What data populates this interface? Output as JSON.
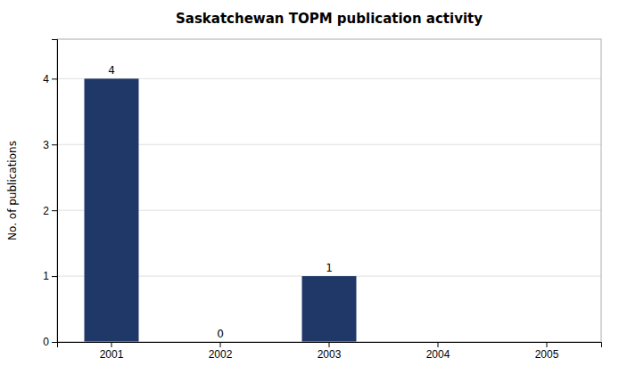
{
  "chart_data": {
    "type": "bar",
    "title": "Saskatchewan TOPM publication activity",
    "ylabel": "No. of publications",
    "categories": [
      "2001",
      "2002",
      "2003",
      "2004",
      "2005"
    ],
    "values": [
      4,
      0,
      1,
      0,
      0
    ],
    "value_labels": [
      "4",
      "0",
      "1",
      null,
      null
    ],
    "data_labels": true,
    "color": "#1F3868",
    "ylim": [
      0,
      4.6
    ],
    "yticks": [
      0,
      1,
      2,
      3,
      4
    ],
    "grid": true
  }
}
